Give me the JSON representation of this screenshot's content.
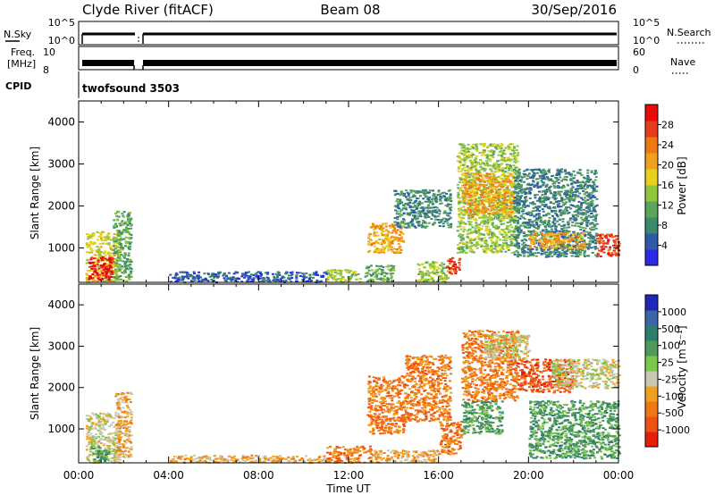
{
  "header": {
    "station": "Clyde River (fitACF)",
    "beam": "Beam 08",
    "date": "30/Sep/2016"
  },
  "params": {
    "nsky_label": "N.Sky",
    "nsky_ticks": [
      "10^5",
      "10^0"
    ],
    "nsearch_label": "N.Search",
    "nsearch_ticks": [
      "10^5",
      "10^0"
    ],
    "freq_label": "Freq.",
    "freq_unit": "[MHz]",
    "freq_ticks": [
      "10",
      "8"
    ],
    "nave_label": "Nave",
    "nave_ticks": [
      "60",
      "0"
    ],
    "cpid_label": "CPID",
    "cpid_value": "twofsound 3503"
  },
  "colors": {
    "power": [
      "#2a2ae6",
      "#2f5aa8",
      "#3c8a6c",
      "#5aa55a",
      "#8fc83c",
      "#e6d21e",
      "#f0a01e",
      "#f07814",
      "#e63c1e",
      "#e60a0a"
    ],
    "velocity": [
      "#1e28b4",
      "#3c64a8",
      "#2e7e6e",
      "#4f9a5a",
      "#7cc84a",
      "#c8c8b4",
      "#f0a01e",
      "#f07814",
      "#f05014",
      "#e61e0a"
    ]
  },
  "chart_data": [
    {
      "type": "heatmap",
      "panel": "power",
      "xlabel": "",
      "ylabel": "Slant Range [km]",
      "ylim": [
        180,
        4500
      ],
      "xlim": [
        "00:00",
        "24:00"
      ],
      "yticks": [
        "1000",
        "2000",
        "3000",
        "4000"
      ],
      "colorbar_label": "Power [dB]",
      "colorbar_ticks": [
        "4",
        "8",
        "12",
        "16",
        "20",
        "24",
        "28"
      ],
      "patches": [
        {
          "t0": 0.3,
          "t1": 1.8,
          "r0": 200,
          "r1": 1400,
          "level": 5
        },
        {
          "t0": 0.4,
          "t1": 1.5,
          "r0": 250,
          "r1": 800,
          "level": 9
        },
        {
          "t0": 1.5,
          "t1": 2.3,
          "r0": 200,
          "r1": 1900,
          "level": 3
        },
        {
          "t0": 4.0,
          "t1": 11.0,
          "r0": 200,
          "r1": 450,
          "level": 1
        },
        {
          "t0": 11.0,
          "t1": 12.5,
          "r0": 200,
          "r1": 500,
          "level": 4
        },
        {
          "t0": 12.7,
          "t1": 14.0,
          "r0": 200,
          "r1": 600,
          "level": 3
        },
        {
          "t0": 12.8,
          "t1": 14.4,
          "r0": 900,
          "r1": 1600,
          "level": 6
        },
        {
          "t0": 14.0,
          "t1": 16.5,
          "r0": 1500,
          "r1": 2400,
          "level": 2
        },
        {
          "t0": 15.0,
          "t1": 16.4,
          "r0": 200,
          "r1": 700,
          "level": 4
        },
        {
          "t0": 16.3,
          "t1": 16.9,
          "r0": 400,
          "r1": 800,
          "level": 8
        },
        {
          "t0": 16.8,
          "t1": 19.5,
          "r0": 900,
          "r1": 3500,
          "level": 4
        },
        {
          "t0": 17.0,
          "t1": 19.3,
          "r0": 1800,
          "r1": 2800,
          "level": 6
        },
        {
          "t0": 19.3,
          "t1": 23.0,
          "r0": 800,
          "r1": 2900,
          "level": 2
        },
        {
          "t0": 20.0,
          "t1": 22.5,
          "r0": 1000,
          "r1": 1400,
          "level": 6
        },
        {
          "t0": 23.0,
          "t1": 24.0,
          "r0": 800,
          "r1": 1350,
          "level": 8
        }
      ]
    },
    {
      "type": "heatmap",
      "panel": "velocity",
      "xlabel": "Time UT",
      "ylabel": "Slant Range [km]",
      "ylim": [
        180,
        4500
      ],
      "xlim": [
        "00:00",
        "24:00"
      ],
      "yticks": [
        "1000",
        "2000",
        "3000",
        "4000"
      ],
      "xticks": [
        "00:00",
        "04:00",
        "08:00",
        "12:00",
        "16:00",
        "20:00",
        "00:00"
      ],
      "colorbar_label": "Velocity [m s⁻¹]",
      "colorbar_ticks": [
        "1000",
        "500",
        "100",
        "25",
        "-25",
        "-100",
        "-500",
        "-1000"
      ],
      "patches": [
        {
          "t0": 0.3,
          "t1": 1.8,
          "r0": 200,
          "r1": 1400,
          "level": 5
        },
        {
          "t0": 0.5,
          "t1": 1.3,
          "r0": 200,
          "r1": 600,
          "level": 3
        },
        {
          "t0": 1.6,
          "t1": 2.3,
          "r0": 300,
          "r1": 1900,
          "level": 6
        },
        {
          "t0": 4.0,
          "t1": 11.0,
          "r0": 200,
          "r1": 380,
          "level": 6
        },
        {
          "t0": 11.0,
          "t1": 13.0,
          "r0": 200,
          "r1": 600,
          "level": 7
        },
        {
          "t0": 13.0,
          "t1": 16.0,
          "r0": 200,
          "r1": 500,
          "level": 6
        },
        {
          "t0": 12.8,
          "t1": 14.5,
          "r0": 900,
          "r1": 2300,
          "level": 7
        },
        {
          "t0": 14.5,
          "t1": 16.5,
          "r0": 1200,
          "r1": 2800,
          "level": 7
        },
        {
          "t0": 16.0,
          "t1": 17.0,
          "r0": 400,
          "r1": 1200,
          "level": 7
        },
        {
          "t0": 17.0,
          "t1": 18.8,
          "r0": 900,
          "r1": 1700,
          "level": 3
        },
        {
          "t0": 17.0,
          "t1": 19.5,
          "r0": 1700,
          "r1": 3400,
          "level": 7
        },
        {
          "t0": 18.0,
          "t1": 20.0,
          "r0": 2700,
          "r1": 3300,
          "level": 5
        },
        {
          "t0": 19.5,
          "t1": 22.0,
          "r0": 1900,
          "r1": 2700,
          "level": 8
        },
        {
          "t0": 21.0,
          "t1": 24.0,
          "r0": 2000,
          "r1": 2700,
          "level": 5
        },
        {
          "t0": 20.0,
          "t1": 24.0,
          "r0": 300,
          "r1": 1700,
          "level": 3
        }
      ]
    }
  ]
}
